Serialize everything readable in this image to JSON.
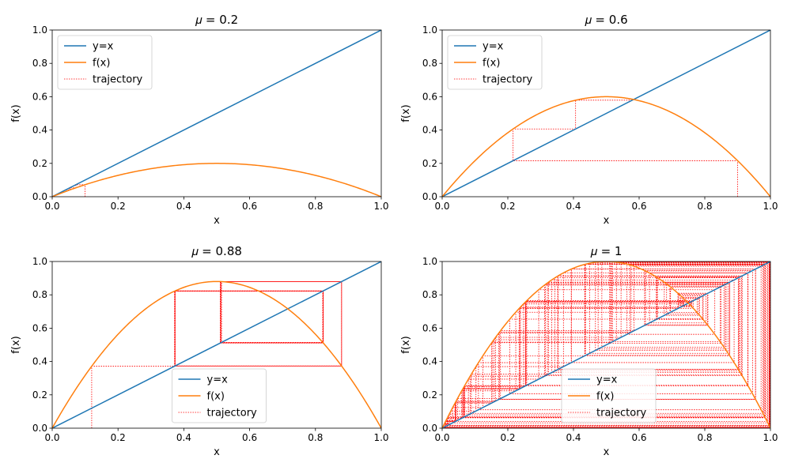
{
  "chart_data": [
    {
      "type": "line",
      "title": "𝜇 = 0.2",
      "mu": 0.2,
      "xlabel": "x",
      "ylabel": "f(x)",
      "xlim": [
        0,
        1
      ],
      "ylim": [
        0,
        1
      ],
      "xticks": [
        "0.0",
        "0.2",
        "0.4",
        "0.6",
        "0.8",
        "1.0"
      ],
      "yticks": [
        "0.0",
        "0.2",
        "0.4",
        "0.6",
        "0.8",
        "1.0"
      ],
      "grid": false,
      "legend_position": "upper-left",
      "series": [
        {
          "name": "y=x",
          "color": "#1f77b4",
          "function": "identity"
        },
        {
          "name": "f(x)",
          "color": "#ff7f0e",
          "function": "4*mu*x*(1-x)"
        },
        {
          "name": "trajectory",
          "color": "#ff0000",
          "style": "dotted",
          "x0": 0.1,
          "iterations": 40
        }
      ]
    },
    {
      "type": "line",
      "title": "𝜇 = 0.6",
      "mu": 0.6,
      "xlabel": "x",
      "ylabel": "f(x)",
      "xlim": [
        0,
        1
      ],
      "ylim": [
        0,
        1
      ],
      "xticks": [
        "0.0",
        "0.2",
        "0.4",
        "0.6",
        "0.8",
        "1.0"
      ],
      "yticks": [
        "0.0",
        "0.2",
        "0.4",
        "0.6",
        "0.8",
        "1.0"
      ],
      "grid": false,
      "legend_position": "upper-left",
      "series": [
        {
          "name": "y=x",
          "color": "#1f77b4",
          "function": "identity"
        },
        {
          "name": "f(x)",
          "color": "#ff7f0e",
          "function": "4*mu*x*(1-x)"
        },
        {
          "name": "trajectory",
          "color": "#ff0000",
          "style": "dotted",
          "x0": 0.9,
          "iterations": 40
        }
      ]
    },
    {
      "type": "line",
      "title": "𝜇 = 0.88",
      "mu": 0.88,
      "xlabel": "x",
      "ylabel": "f(x)",
      "xlim": [
        0,
        1
      ],
      "ylim": [
        0,
        1
      ],
      "xticks": [
        "0.0",
        "0.2",
        "0.4",
        "0.6",
        "0.8",
        "1.0"
      ],
      "yticks": [
        "0.0",
        "0.2",
        "0.4",
        "0.6",
        "0.8",
        "1.0"
      ],
      "grid": false,
      "legend_position": "lower-center",
      "series": [
        {
          "name": "y=x",
          "color": "#1f77b4",
          "function": "identity"
        },
        {
          "name": "f(x)",
          "color": "#ff7f0e",
          "function": "4*mu*x*(1-x)"
        },
        {
          "name": "trajectory",
          "color": "#ff0000",
          "style": "dotted",
          "x0": 0.12,
          "iterations": 60
        }
      ]
    },
    {
      "type": "line",
      "title": "𝜇 = 1",
      "mu": 1,
      "xlabel": "x",
      "ylabel": "f(x)",
      "xlim": [
        0,
        1
      ],
      "ylim": [
        0,
        1
      ],
      "xticks": [
        "0.0",
        "0.2",
        "0.4",
        "0.6",
        "0.8",
        "1.0"
      ],
      "yticks": [
        "0.0",
        "0.2",
        "0.4",
        "0.6",
        "0.8",
        "1.0"
      ],
      "grid": false,
      "legend_position": "lower-center",
      "series": [
        {
          "name": "y=x",
          "color": "#1f77b4",
          "function": "identity"
        },
        {
          "name": "f(x)",
          "color": "#ff7f0e",
          "function": "4*mu*x*(1-x)"
        },
        {
          "name": "trajectory",
          "color": "#ff0000",
          "style": "dotted",
          "x0": 0.01,
          "iterations": 150
        }
      ]
    }
  ]
}
